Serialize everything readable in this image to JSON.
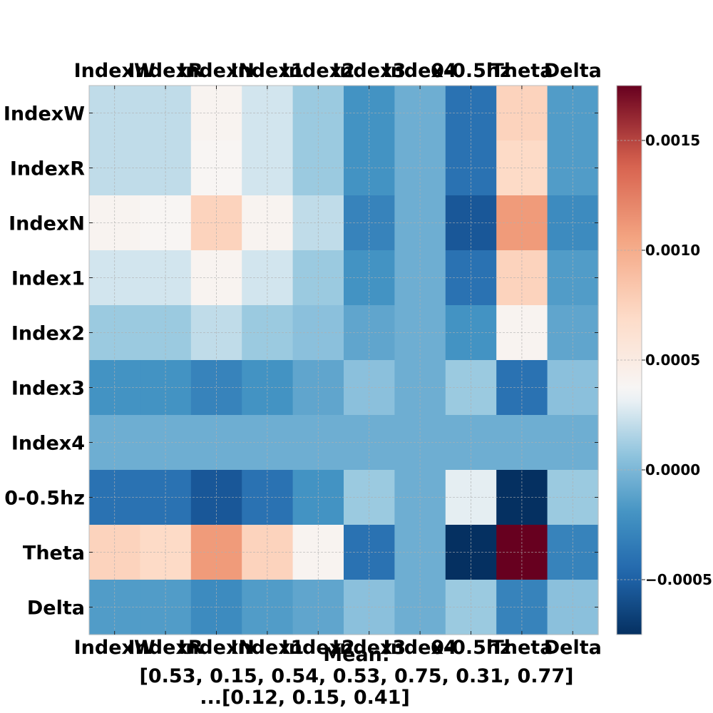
{
  "chart_data": {
    "type": "heatmap",
    "title": "",
    "labels": [
      "IndexW",
      "IndexR",
      "IndexN",
      "Index1",
      "Index2",
      "Index3",
      "Index4",
      "0-0.5hz",
      "Theta",
      "Delta"
    ],
    "values": [
      [
        0.0002,
        0.0002,
        0.0004,
        0.00025,
        0.0001,
        -0.0002,
        -5e-05,
        -0.0004,
        0.00075,
        -0.00015
      ],
      [
        0.0002,
        0.0002,
        0.00038,
        0.00025,
        0.0001,
        -0.0002,
        -5e-05,
        -0.0004,
        0.0007,
        -0.00015
      ],
      [
        0.0004,
        0.00038,
        0.00075,
        0.0004,
        0.0002,
        -0.0003,
        -5e-05,
        -0.00055,
        0.0011,
        -0.00025
      ],
      [
        0.00025,
        0.00025,
        0.0004,
        0.00025,
        0.0001,
        -0.0002,
        -5e-05,
        -0.0004,
        0.00075,
        -0.00015
      ],
      [
        0.0001,
        0.0001,
        0.0002,
        0.0001,
        5e-05,
        -0.0001,
        -5e-05,
        -0.0002,
        0.0004,
        -0.0001
      ],
      [
        -0.0002,
        -0.0002,
        -0.0003,
        -0.0002,
        -0.0001,
        5e-05,
        -5e-05,
        0.0001,
        -0.0004,
        5e-05
      ],
      [
        -5e-05,
        -5e-05,
        -5e-05,
        -5e-05,
        -5e-05,
        -5e-05,
        -5e-05,
        -5e-05,
        -5e-05,
        -5e-05
      ],
      [
        -0.0004,
        -0.0004,
        -0.00055,
        -0.0004,
        -0.0002,
        0.0001,
        -5e-05,
        0.0003,
        -0.00075,
        0.0001
      ],
      [
        0.00075,
        0.0007,
        0.0011,
        0.00075,
        0.0004,
        -0.0004,
        -5e-05,
        -0.00075,
        0.00175,
        -0.0003
      ],
      [
        -0.00015,
        -0.00015,
        -0.00025,
        -0.00015,
        -0.0001,
        5e-05,
        -5e-05,
        0.0001,
        -0.0003,
        5e-05
      ]
    ],
    "colorbar": {
      "min": -0.00075,
      "max": 0.00175,
      "ticks": [
        -0.0005,
        0.0,
        0.0005,
        0.001,
        0.0015
      ],
      "tick_labels": [
        "−0.0005",
        "0.0000",
        "0.0005",
        "0.0010",
        "0.0015"
      ],
      "colormap": "RdBu_r"
    },
    "grid": true
  },
  "caption": {
    "line1": "Mean:",
    "line2": "[0.53, 0.15, 0.54, 0.53, 0.75, 0.31, 0.77]",
    "line3": "...[0.12, 0.15, 0.41]"
  }
}
